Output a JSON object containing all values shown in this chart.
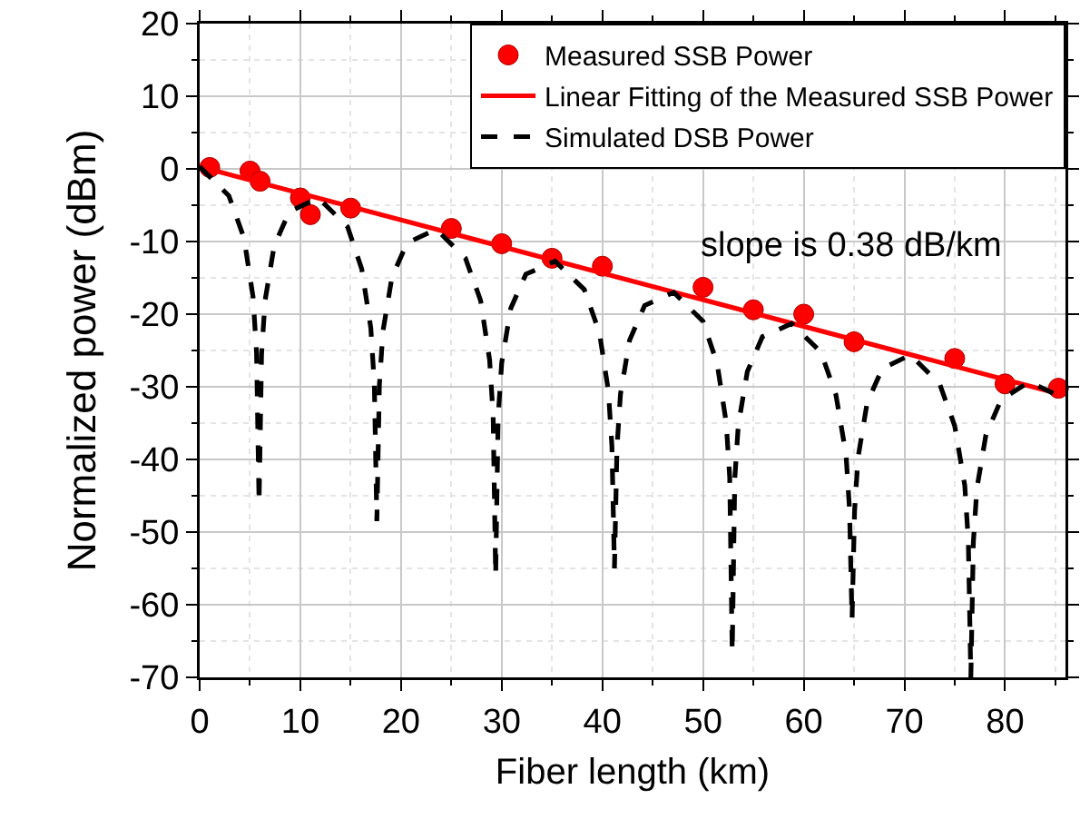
{
  "chart_data": {
    "type": "line",
    "xlabel": "Fiber length (km)",
    "ylabel": "Normalized power (dBm)",
    "xlim": [
      0,
      86
    ],
    "xticks": [
      0,
      10,
      20,
      30,
      40,
      50,
      60,
      70,
      80
    ],
    "ylim": [
      -70,
      20
    ],
    "yticks": [
      -70,
      -60,
      -50,
      -40,
      -30,
      -20,
      -10,
      0,
      10,
      20
    ],
    "grid": true,
    "legend": "top right",
    "annotations": [
      "slope is 0.38 dB/km"
    ],
    "series": [
      {
        "name": "Measured SSB Power",
        "type": "scatter",
        "marker": "circle",
        "color": "#ff0000",
        "x": [
          1,
          5,
          6,
          10,
          11,
          15,
          25,
          30,
          35,
          40,
          50,
          55,
          60,
          65,
          75,
          80,
          85.3
        ],
        "values": [
          0.2,
          -0.3,
          -1.7,
          -4,
          -6.3,
          -5.4,
          -8.2,
          -10.3,
          -12.3,
          -13.4,
          -16.3,
          -19.4,
          -20,
          -23.8,
          -26.1,
          -29.6,
          -30.2
        ]
      },
      {
        "name": "Linear Fitting of the Measured SSB Power",
        "marker": "none",
        "line_style": "solid",
        "color": "#ff0000",
        "x": [
          0,
          85.7
        ],
        "values": [
          0.3,
          -31.1
        ]
      },
      {
        "name": "Simulated DSB Power",
        "marker": "none",
        "line_style": "dashed",
        "color": "#000000",
        "x": [
          0,
          2.9,
          4.4,
          5.3,
          5.65,
          5.9,
          6.15,
          6.5,
          7.4,
          8.9,
          11.8,
          14.7,
          16.1,
          17,
          17.35,
          17.6,
          17.85,
          18.2,
          19.1,
          20.6,
          23.5,
          26.4,
          27.9,
          28.8,
          29.15,
          29.4,
          29.65,
          30,
          30.9,
          32.4,
          35.3,
          38.2,
          39.7,
          40.6,
          40.95,
          41.2,
          41.45,
          41.8,
          42.7,
          44.2,
          47.1,
          50,
          51.4,
          52.3,
          52.65,
          52.9,
          53.15,
          53.5,
          54.4,
          55.9,
          58.8,
          61.7,
          63.2,
          64.2,
          64.55,
          64.8,
          65.05,
          65.4,
          66.3,
          67.8,
          70.6,
          73.5,
          75,
          76,
          76.35,
          76.6,
          76.85,
          77.2,
          78.1,
          79.6,
          82.4,
          85.7
        ],
        "values": [
          0.3,
          -3.7,
          -9.5,
          -17.6,
          -25.3,
          -46,
          -25.5,
          -18.1,
          -10.6,
          -5.9,
          -4,
          -8,
          -13.8,
          -21.9,
          -29.6,
          -48.5,
          -29.8,
          -22.4,
          -14.9,
          -10.2,
          -8.3,
          -12.3,
          -18.1,
          -26.3,
          -33.9,
          -56,
          -34.1,
          -26.7,
          -19.2,
          -14.5,
          -12.7,
          -16.6,
          -22.5,
          -30.6,
          -38.2,
          -55,
          -38.4,
          -31,
          -23.6,
          -18.8,
          -17,
          -21,
          -26.8,
          -34.9,
          -42.5,
          -66.5,
          -42.7,
          -35.3,
          -27.9,
          -23.1,
          -21.3,
          -25.2,
          -31.1,
          -39.3,
          -46.9,
          -62,
          -47.1,
          -39.7,
          -32.2,
          -27.5,
          -25.6,
          -29.6,
          -35.4,
          -43.6,
          -51.2,
          -70,
          -51.4,
          -44,
          -36.6,
          -31.8,
          -29.3,
          -31.5
        ]
      }
    ]
  }
}
